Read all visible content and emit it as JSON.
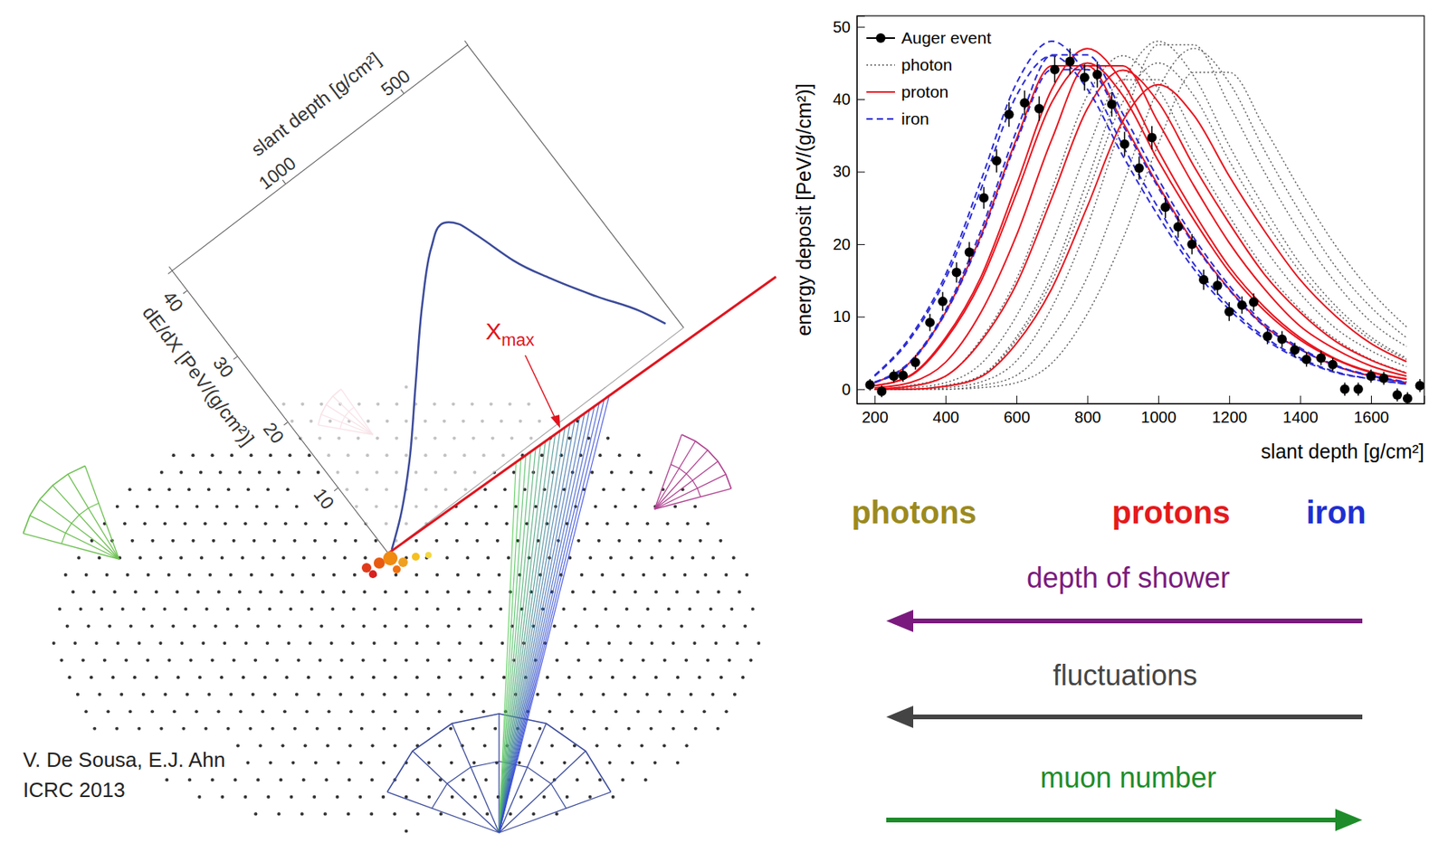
{
  "chart_data": [
    {
      "type": "line",
      "xlabel": "slant depth [g/cm²]",
      "ylabel": "dE/dX [PeV/(g/cm²)]",
      "xlim": [
        1480,
        230
      ],
      "ylim": [
        0,
        43
      ],
      "xticks": [
        500,
        1000
      ],
      "yticks": [
        10,
        20,
        30,
        40
      ],
      "x": [
        1462,
        1372,
        1234,
        1066,
        877,
        739,
        668,
        618,
        593,
        547,
        485,
        399,
        308,
        270
      ],
      "series": [
        {
          "color": "#3a4a9a",
          "line_style": "solid",
          "values": [
            0.1,
            2.6,
            7.3,
            14.0,
            21.5,
            26.2,
            27.7,
            26.4,
            24.0,
            18.9,
            14.5,
            9.4,
            4.5,
            1.7
          ]
        }
      ],
      "annotations": [
        {
          "text": "Xmax",
          "color": "#e0141e"
        },
        {
          "text": "V. De Sousa, E.J. Ahn",
          "color": "#222222"
        },
        {
          "text": "ICRC 2013",
          "color": "#222222"
        }
      ]
    },
    {
      "type": "line",
      "xlabel": "slant depth [g/cm²]",
      "ylabel": "energy deposit [PeV/(g/cm²)]",
      "xlim": [
        150,
        1750
      ],
      "ylim": [
        -2,
        51.5
      ],
      "xticks": [
        200,
        400,
        600,
        800,
        1000,
        1200,
        1400,
        1600
      ],
      "yticks": [
        0,
        10,
        20,
        30,
        40,
        50
      ],
      "legend": "upper left",
      "x": [
        200,
        300,
        400,
        500,
        600,
        700,
        800,
        900,
        1000,
        1100,
        1200,
        1300,
        1400,
        1500,
        1600,
        1700
      ],
      "series": [
        {
          "name": "Auger event",
          "type": "scatter",
          "color": "#000000",
          "marker": "circle",
          "x": [
            187,
            220,
            254,
            280,
            315,
            356,
            392,
            431,
            467,
            508,
            544,
            579,
            623,
            664,
            708,
            751,
            792,
            828,
            869,
            905,
            946,
            982,
            1020,
            1056,
            1095,
            1128,
            1167,
            1200,
            1236,
            1269,
            1308,
            1349,
            1385,
            1418,
            1459,
            1492,
            1526,
            1564,
            1600,
            1636,
            1674,
            1703,
            1738
          ],
          "values": [
            0.6,
            -0.3,
            1.8,
            1.9,
            3.7,
            9.2,
            12.1,
            16.1,
            18.9,
            26.4,
            31.5,
            37.9,
            39.5,
            38.7,
            44.1,
            45.2,
            43.0,
            43.4,
            39.3,
            33.8,
            30.5,
            34.7,
            25.1,
            22.4,
            20.0,
            15.1,
            14.3,
            10.7,
            11.6,
            12.0,
            7.3,
            6.9,
            5.4,
            4.1,
            4.3,
            3.4,
            0.0,
            0.0,
            1.8,
            1.5,
            -0.8,
            -1.3,
            0.5
          ],
          "errors": [
            0.8,
            0.8,
            0.9,
            0.9,
            1.0,
            1.2,
            1.3,
            1.4,
            1.4,
            1.5,
            1.6,
            1.7,
            1.7,
            1.7,
            1.8,
            1.8,
            1.8,
            1.8,
            1.7,
            1.7,
            1.6,
            1.6,
            1.5,
            1.5,
            1.4,
            1.4,
            1.3,
            1.3,
            1.2,
            1.2,
            1.1,
            1.1,
            1.0,
            1.0,
            1.0,
            0.9,
            0.9,
            0.9,
            0.9,
            0.9,
            0.9,
            0.9,
            0.9
          ]
        },
        {
          "name": "photon",
          "type": "line",
          "color": "#555555",
          "line_style": "dotted",
          "curves": [
            [
              0,
              0.5,
              1.8,
              6.9,
              15.2,
              27.6,
              40.5,
              46,
              41.4,
              32.2,
              23.9,
              16.6,
              11.0,
              6.9,
              4.1,
              2.3
            ],
            [
              0,
              0,
              0.5,
              1.9,
              7.2,
              15.8,
              28.8,
              42.2,
              48,
              43.2,
              33.6,
              25.0,
              17.3,
              11.5,
              7.2,
              4.3
            ],
            [
              0,
              0,
              0.5,
              1.8,
              6.8,
              14.9,
              27,
              39.6,
              45,
              40.5,
              31.5,
              23.4,
              16.2,
              10.8,
              6.8,
              4.1
            ],
            [
              0,
              0,
              0,
              0.5,
              1.9,
              7.1,
              15.5,
              28.2,
              41.4,
              47,
              42.3,
              32.9,
              24.4,
              16.9,
              11.3,
              7.1
            ],
            [
              0,
              0,
              0.2,
              1.0,
              3.9,
              11.3,
              22.5,
              36.8,
              47.5,
              47.5,
              39.2,
              29.9,
              21.6,
              14.7,
              9.3,
              5.9
            ],
            [
              0,
              0.2,
              0.9,
              3.5,
              10.1,
              20.2,
              33,
              42.7,
              42.7,
              35.2,
              26.8,
              19.4,
              13.2,
              8.4,
              5.3,
              3.1
            ],
            [
              0,
              0,
              0,
              0.2,
              0.9,
              3.6,
              10.4,
              20.7,
              33.8,
              43.7,
              43.7,
              36,
              27.5,
              19.8,
              13.5,
              8.6
            ]
          ]
        },
        {
          "name": "proton",
          "type": "line",
          "color": "#e8141e",
          "line_style": "solid",
          "curves": [
            [
              0.5,
              1.9,
              7.1,
              15.5,
              28.2,
              41.4,
              47,
              42.3,
              32.9,
              24.4,
              16.9,
              11.3,
              7.1,
              4.2,
              2.4,
              1.4
            ],
            [
              0.5,
              1.8,
              6.8,
              14.9,
              27,
              39.6,
              45,
              40.5,
              31.5,
              23.4,
              16.2,
              10.8,
              6.8,
              4.1,
              2.3,
              1.4
            ],
            [
              0.2,
              0.9,
              3.7,
              10.6,
              21.2,
              34.5,
              44.6,
              44.6,
              36.8,
              28.1,
              20.2,
              13.8,
              8.7,
              5.5,
              3.2,
              1.8
            ],
            [
              0,
              0.4,
              1.8,
              6.6,
              14.5,
              26.4,
              38.7,
              44,
              39.6,
              30.8,
              22.9,
              15.8,
              10.6,
              6.6,
              4.0,
              2.2
            ],
            [
              0,
              0,
              0.4,
              1.7,
              6.3,
              13.9,
              25.2,
              37.0,
              42,
              37.8,
              29.4,
              21.8,
              15.1,
              10.1,
              6.3,
              3.8
            ],
            [
              0.9,
              3.7,
              10.6,
              21.2,
              34.5,
              44.6,
              44.6,
              36.8,
              28.1,
              20.2,
              13.8,
              8.7,
              5.5,
              3.2,
              1.8,
              0.9
            ]
          ]
        },
        {
          "name": "iron",
          "type": "line",
          "color": "#2b2bd6",
          "line_style": "dashed",
          "curves": [
            [
              1.9,
              7.2,
              15.8,
              28.8,
              42.2,
              48,
              43.2,
              33.6,
              25.0,
              17.3,
              11.5,
              7.2,
              4.3,
              2.4,
              1.4,
              0.7
            ],
            [
              1.8,
              6.9,
              15.2,
              27.6,
              40.5,
              46,
              41.4,
              32.2,
              23.9,
              16.6,
              11.0,
              6.9,
              4.1,
              2.3,
              1.4,
              0.7
            ],
            [
              1.0,
              3.8,
              10.9,
              21.9,
              35.6,
              46.1,
              46.1,
              38.0,
              29.0,
              20.9,
              14.3,
              9.0,
              5.7,
              3.3,
              1.9,
              1.0
            ],
            [
              0.9,
              3.6,
              10.5,
              20.9,
              34.1,
              44.1,
              44.1,
              36.4,
              27.8,
              20.0,
              13.7,
              8.6,
              5.5,
              3.2,
              1.8,
              0.9
            ]
          ]
        }
      ],
      "annotations": [
        {
          "text": "photons",
          "color": "#9b8a1e"
        },
        {
          "text": "protons",
          "color": "#e41a1c"
        },
        {
          "text": "iron",
          "color": "#1f2fd0"
        },
        {
          "text": "depth of shower",
          "color": "#7a1a7e"
        },
        {
          "text": "fluctuations",
          "color": "#444444"
        },
        {
          "text": "muon number",
          "color": "#1e8c2a"
        }
      ]
    }
  ]
}
